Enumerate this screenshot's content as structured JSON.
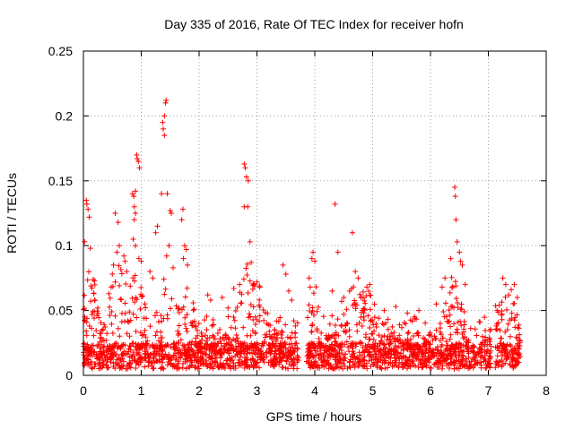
{
  "chart_data": {
    "type": "scatter",
    "title": "Day 335 of 2016, Rate Of TEC Index for receiver hofn",
    "xlabel": "GPS time / hours",
    "ylabel": "ROTI / TECUs",
    "xlim": [
      0,
      8
    ],
    "ylim": [
      0,
      0.25
    ],
    "xticks": [
      0,
      1,
      2,
      3,
      4,
      5,
      6,
      7,
      8
    ],
    "yticks": [
      0,
      0.05,
      0.1,
      0.15,
      0.2,
      0.25
    ],
    "xtick_labels": [
      "0",
      "1",
      "2",
      "3",
      "4",
      "5",
      "6",
      "7",
      "8"
    ],
    "ytick_labels": [
      "0",
      "0.05",
      "0.1",
      "0.15",
      "0.2",
      "0.25"
    ],
    "grid": true,
    "marker": "+",
    "color": "#ff0000",
    "series": [
      {
        "name": "ROTI",
        "points": [
          [
            0.02,
            0.103
          ],
          [
            0.05,
            0.135
          ],
          [
            0.06,
            0.132
          ],
          [
            0.08,
            0.128
          ],
          [
            0.1,
            0.122
          ],
          [
            0.12,
            0.098
          ],
          [
            0.18,
            0.063
          ],
          [
            0.2,
            0.058
          ],
          [
            0.15,
            0.047
          ],
          [
            0.25,
            0.052
          ],
          [
            0.55,
            0.125
          ],
          [
            0.6,
            0.118
          ],
          [
            0.62,
            0.1
          ],
          [
            0.58,
            0.095
          ],
          [
            0.52,
            0.085
          ],
          [
            0.5,
            0.078
          ],
          [
            0.55,
            0.072
          ],
          [
            0.48,
            0.068
          ],
          [
            0.7,
            0.092
          ],
          [
            0.72,
            0.088
          ],
          [
            0.75,
            0.08
          ],
          [
            0.85,
            0.14
          ],
          [
            0.87,
            0.138
          ],
          [
            0.88,
            0.13
          ],
          [
            0.9,
            0.142
          ],
          [
            0.92,
            0.17
          ],
          [
            0.93,
            0.167
          ],
          [
            0.95,
            0.165
          ],
          [
            0.97,
            0.16
          ],
          [
            0.9,
            0.125
          ],
          [
            0.88,
            0.12
          ],
          [
            0.86,
            0.105
          ],
          [
            0.9,
            0.1
          ],
          [
            0.96,
            0.09
          ],
          [
            1.0,
            0.088
          ],
          [
            1.15,
            0.08
          ],
          [
            1.2,
            0.075
          ],
          [
            1.25,
            0.11
          ],
          [
            1.28,
            0.115
          ],
          [
            1.35,
            0.14
          ],
          [
            1.37,
            0.195
          ],
          [
            1.38,
            0.19
          ],
          [
            1.4,
            0.2
          ],
          [
            1.42,
            0.21
          ],
          [
            1.43,
            0.212
          ],
          [
            1.4,
            0.185
          ],
          [
            1.45,
            0.14
          ],
          [
            1.5,
            0.127
          ],
          [
            1.52,
            0.125
          ],
          [
            1.48,
            0.1
          ],
          [
            1.44,
            0.092
          ],
          [
            1.55,
            0.083
          ],
          [
            1.7,
            0.12
          ],
          [
            1.72,
            0.128
          ],
          [
            1.75,
            0.1
          ],
          [
            1.78,
            0.097
          ],
          [
            1.73,
            0.09
          ],
          [
            1.8,
            0.085
          ],
          [
            2.15,
            0.062
          ],
          [
            2.2,
            0.058
          ],
          [
            2.4,
            0.06
          ],
          [
            2.5,
            0.052
          ],
          [
            2.6,
            0.067
          ],
          [
            2.7,
            0.07
          ],
          [
            2.78,
            0.163
          ],
          [
            2.8,
            0.16
          ],
          [
            2.82,
            0.153
          ],
          [
            2.85,
            0.15
          ],
          [
            2.78,
            0.13
          ],
          [
            2.84,
            0.13
          ],
          [
            2.88,
            0.103
          ],
          [
            2.9,
            0.087
          ],
          [
            2.95,
            0.07
          ],
          [
            3.0,
            0.072
          ],
          [
            3.05,
            0.068
          ],
          [
            3.45,
            0.085
          ],
          [
            3.5,
            0.078
          ],
          [
            3.55,
            0.065
          ],
          [
            3.6,
            0.058
          ],
          [
            3.9,
            0.075
          ],
          [
            3.95,
            0.09
          ],
          [
            3.97,
            0.095
          ],
          [
            4.0,
            0.088
          ],
          [
            3.92,
            0.068
          ],
          [
            4.35,
            0.132
          ],
          [
            4.4,
            0.095
          ],
          [
            4.3,
            0.065
          ],
          [
            4.5,
            0.06
          ],
          [
            4.65,
            0.11
          ],
          [
            4.7,
            0.08
          ],
          [
            4.75,
            0.075
          ],
          [
            4.8,
            0.06
          ],
          [
            4.9,
            0.068
          ],
          [
            4.95,
            0.07
          ],
          [
            5.2,
            0.05
          ],
          [
            5.4,
            0.053
          ],
          [
            5.6,
            0.048
          ],
          [
            5.8,
            0.05
          ],
          [
            6.1,
            0.055
          ],
          [
            6.2,
            0.068
          ],
          [
            6.25,
            0.075
          ],
          [
            6.35,
            0.09
          ],
          [
            6.42,
            0.145
          ],
          [
            6.43,
            0.138
          ],
          [
            6.44,
            0.12
          ],
          [
            6.46,
            0.103
          ],
          [
            6.5,
            0.095
          ],
          [
            6.52,
            0.088
          ],
          [
            6.55,
            0.085
          ],
          [
            6.6,
            0.07
          ],
          [
            7.15,
            0.05
          ],
          [
            7.25,
            0.075
          ],
          [
            7.3,
            0.07
          ],
          [
            7.35,
            0.062
          ],
          [
            7.45,
            0.07
          ],
          [
            7.5,
            0.06
          ]
        ]
      }
    ]
  }
}
